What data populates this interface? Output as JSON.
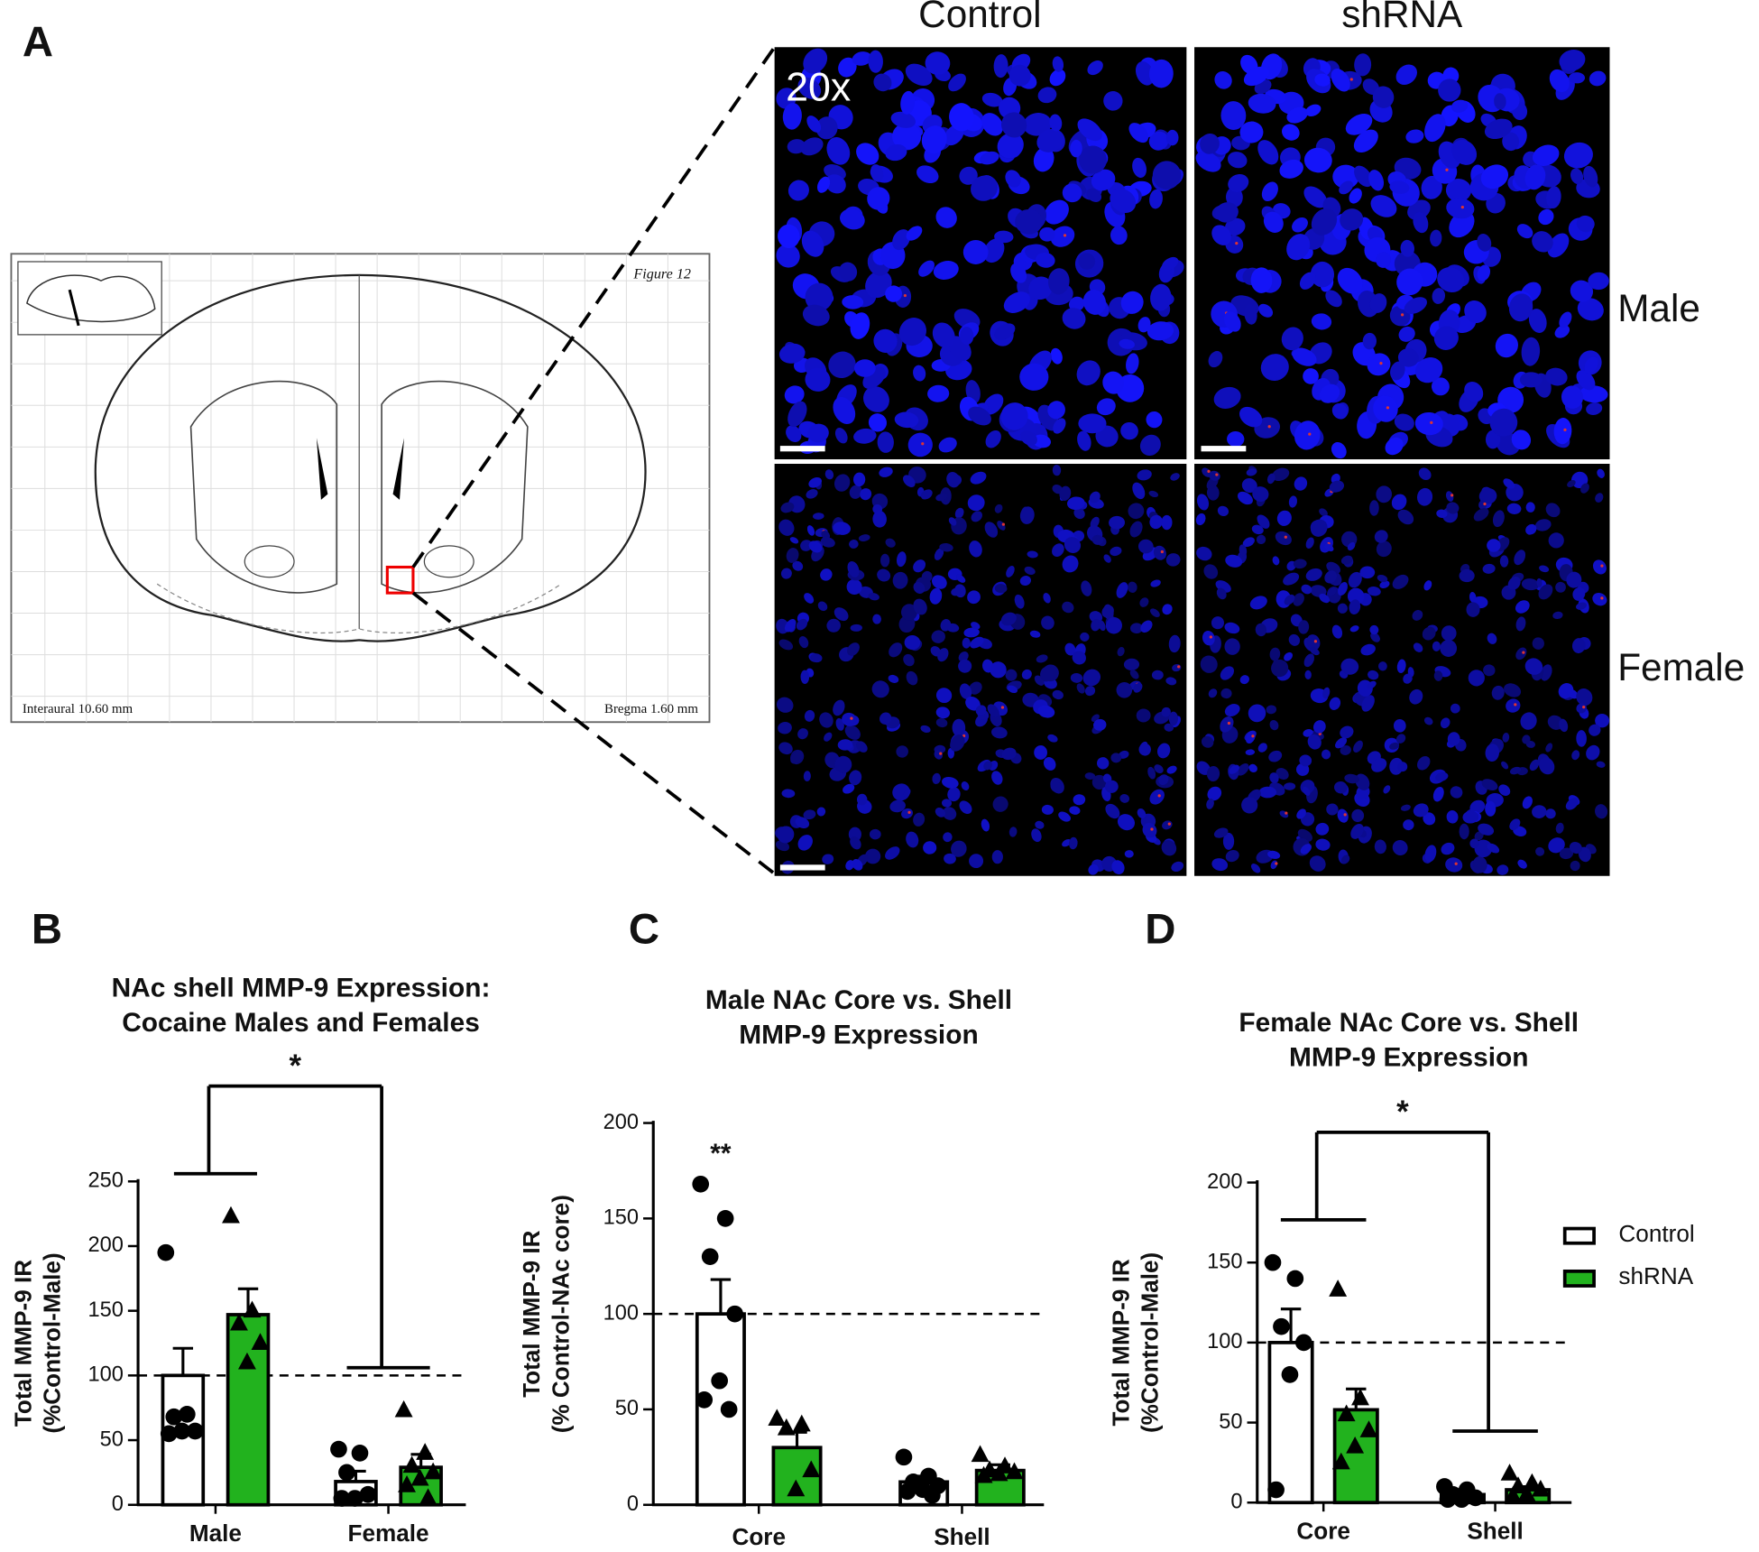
{
  "panel_a": {
    "label": "A",
    "columns": [
      "Control",
      "shRNA"
    ],
    "rows": [
      "Male",
      "Female"
    ],
    "magnification": "20x",
    "atlas": {
      "figure": "Figure 12",
      "interaural": "Interaural 10.60 mm",
      "bregma": "Bregma 1.60 mm"
    }
  },
  "chart_data": [
    {
      "type": "bar",
      "panel": "B",
      "title": [
        "NAc shell MMP-9 Expression:",
        "Cocaine Males and Females"
      ],
      "ylabel": [
        "Total MMP-9 IR",
        "(%Control-Male)"
      ],
      "categories": [
        "Male",
        "Female"
      ],
      "series": [
        {
          "color": "#ffffff",
          "marker": "circle",
          "values": [
            100,
            18
          ],
          "errors": [
            21,
            8
          ],
          "points": [
            [
              195,
              70,
              68,
              57,
              57,
              55
            ],
            [
              43,
              40,
              25,
              8,
              5,
              5
            ]
          ]
        },
        {
          "color": "#22b21e",
          "marker": "triangle",
          "values": [
            147,
            29
          ],
          "errors": [
            20,
            10
          ],
          "points": [
            [
              223,
              150,
              140,
              125,
              110
            ],
            [
              73,
              40,
              30,
              25,
              20,
              15,
              5
            ]
          ]
        }
      ],
      "ylim": [
        0,
        250
      ],
      "yticks": [
        0,
        50,
        100,
        150,
        200,
        250
      ],
      "refline": 100,
      "bracket": true,
      "annotation": "*"
    },
    {
      "type": "bar",
      "panel": "C",
      "title": [
        "Male NAc Core vs. Shell",
        "MMP-9 Expression"
      ],
      "ylabel": [
        "Total MMP-9 IR",
        "(% Control-NAc core)"
      ],
      "categories": [
        "Core",
        "Shell"
      ],
      "series": [
        {
          "color": "#ffffff",
          "marker": "circle",
          "values": [
            100,
            12
          ],
          "errors": [
            18,
            3
          ],
          "points": [
            [
              168,
              150,
              130,
              100,
              65,
              55,
              50
            ],
            [
              25,
              15,
              12,
              10,
              8,
              7,
              5
            ]
          ]
        },
        {
          "color": "#22b21e",
          "marker": "triangle",
          "values": [
            30,
            18
          ],
          "errors": [
            8,
            3
          ],
          "points": [
            [
              45,
              42,
              40,
              18,
              8
            ],
            [
              26,
              20,
              18,
              17,
              16,
              15
            ]
          ]
        }
      ],
      "ylim": [
        0,
        200
      ],
      "yticks": [
        0,
        50,
        100,
        150,
        200
      ],
      "refline": 100,
      "bracket": false,
      "annotation": "**"
    },
    {
      "type": "bar",
      "panel": "D",
      "title": [
        "Female NAc Core vs. Shell",
        "MMP-9 Expression"
      ],
      "ylabel": [
        "Total MMP-9 IR",
        "(%Control-Male)"
      ],
      "categories": [
        "Core",
        "Shell"
      ],
      "series": [
        {
          "name": "Control",
          "color": "#ffffff",
          "marker": "circle",
          "values": [
            100,
            5
          ],
          "errors": [
            21,
            2
          ],
          "points": [
            [
              150,
              140,
              110,
              100,
              80,
              8
            ],
            [
              10,
              8,
              5,
              3,
              2,
              2
            ]
          ]
        },
        {
          "name": "shRNA",
          "color": "#22b21e",
          "marker": "triangle",
          "values": [
            58,
            8
          ],
          "errors": [
            13,
            2
          ],
          "points": [
            [
              133,
              65,
              55,
              45,
              35,
              25
            ],
            [
              18,
              12,
              10,
              8,
              5,
              4
            ]
          ]
        }
      ],
      "ylim": [
        0,
        200
      ],
      "yticks": [
        0,
        50,
        100,
        150,
        200
      ],
      "refline": 100,
      "bracket": true,
      "annotation": "*",
      "legend": "right"
    }
  ]
}
